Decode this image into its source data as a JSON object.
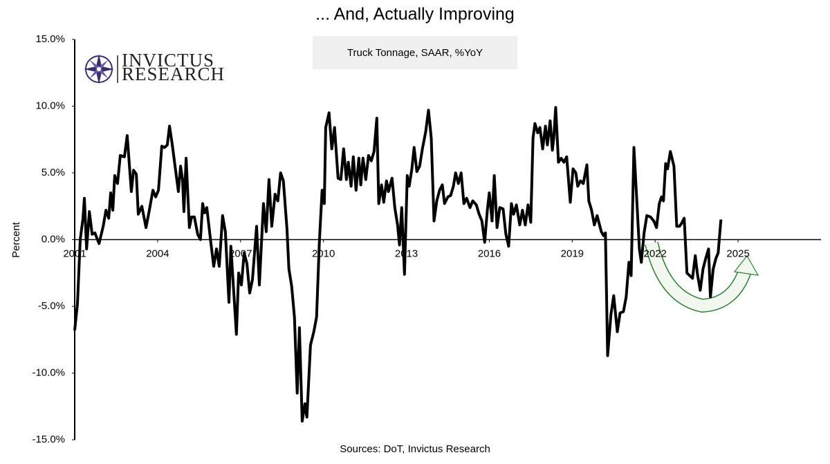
{
  "chart_data": {
    "type": "line",
    "title": "... And, Actually Improving",
    "subtitle": "Truck Tonnage, SAAR, %YoY",
    "ylabel": "Percent",
    "source": "Sources: DoT, Invictus Research",
    "logo": [
      "INVICTUS",
      "RESEARCH"
    ],
    "color": "#000000",
    "xlim": [
      2001,
      2028
    ],
    "xticks": [
      2001,
      2004,
      2007,
      2010,
      2013,
      2016,
      2019,
      2022,
      2025
    ],
    "ylim": [
      -15,
      15
    ],
    "yticks": [
      {
        "value": -15,
        "label": "-15.0%"
      },
      {
        "value": -10,
        "label": "-10.0%"
      },
      {
        "value": -5,
        "label": "-5.0%"
      },
      {
        "value": 0,
        "label": "0.0%"
      },
      {
        "value": 5,
        "label": "5.0%"
      },
      {
        "value": 10,
        "label": "10.0%"
      },
      {
        "value": 15,
        "label": "15.0%"
      }
    ],
    "x": [
      2001.0,
      2001.1,
      2001.2,
      2001.3,
      2001.35,
      2001.43,
      2001.53,
      2001.63,
      2001.73,
      2001.88,
      2002.03,
      2002.13,
      2002.23,
      2002.3,
      2002.38,
      2002.45,
      2002.55,
      2002.65,
      2002.8,
      2002.9,
      2003.05,
      2003.13,
      2003.23,
      2003.3,
      2003.43,
      2003.58,
      2003.7,
      2003.83,
      2003.93,
      2004.03,
      2004.15,
      2004.25,
      2004.35,
      2004.43,
      2004.53,
      2004.63,
      2004.75,
      2004.83,
      2004.9,
      2004.95,
      2005.03,
      2005.15,
      2005.23,
      2005.33,
      2005.45,
      2005.55,
      2005.63,
      2005.7,
      2005.78,
      2005.93,
      2006.03,
      2006.13,
      2006.23,
      2006.35,
      2006.45,
      2006.58,
      2006.65,
      2006.85,
      2006.93,
      2007.03,
      2007.13,
      2007.23,
      2007.33,
      2007.43,
      2007.58,
      2007.68,
      2007.83,
      2007.93,
      2008.03,
      2008.13,
      2008.25,
      2008.35,
      2008.45,
      2008.55,
      2008.68,
      2008.75,
      2008.85,
      2008.95,
      2009.05,
      2009.13,
      2009.23,
      2009.33,
      2009.4,
      2009.53,
      2009.65,
      2009.75,
      2009.85,
      2009.95,
      2010.03,
      2010.08,
      2010.2,
      2010.3,
      2010.4,
      2010.53,
      2010.63,
      2010.73,
      2010.83,
      2010.9,
      2011.0,
      2011.08,
      2011.18,
      2011.28,
      2011.35,
      2011.43,
      2011.53,
      2011.63,
      2011.73,
      2011.83,
      2011.93,
      2012.0,
      2012.1,
      2012.18,
      2012.28,
      2012.35,
      2012.48,
      2012.58,
      2012.68,
      2012.75,
      2012.83,
      2012.93,
      2013.03,
      2013.1,
      2013.2,
      2013.28,
      2013.38,
      2013.48,
      2013.58,
      2013.7,
      2013.8,
      2013.9,
      2014.0,
      2014.1,
      2014.2,
      2014.3,
      2014.38,
      2014.5,
      2014.6,
      2014.7,
      2014.78,
      2014.88,
      2014.98,
      2015.08,
      2015.18,
      2015.3,
      2015.4,
      2015.53,
      2015.63,
      2015.73,
      2015.83,
      2015.93,
      2016.0,
      2016.1,
      2016.18,
      2016.28,
      2016.38,
      2016.5,
      2016.6,
      2016.7,
      2016.8,
      2016.88,
      2016.98,
      2017.1,
      2017.2,
      2017.3,
      2017.4,
      2017.5,
      2017.58,
      2017.65,
      2017.75,
      2017.83,
      2017.93,
      2018.03,
      2018.1,
      2018.2,
      2018.28,
      2018.33,
      2018.4,
      2018.5,
      2018.6,
      2018.7,
      2018.8,
      2018.93,
      2019.03,
      2019.13,
      2019.2,
      2019.3,
      2019.4,
      2019.53,
      2019.6,
      2019.7,
      2019.8,
      2019.9,
      2020.05,
      2020.13,
      2020.2,
      2020.28,
      2020.4,
      2020.5,
      2020.63,
      2020.73,
      2020.85,
      2020.95,
      2021.05,
      2021.13,
      2021.23,
      2021.33,
      2021.43,
      2021.5,
      2021.6,
      2021.7,
      2021.83,
      2021.95,
      2022.05,
      2022.15,
      2022.23,
      2022.3,
      2022.38,
      2022.45,
      2022.55,
      2022.68,
      2022.78,
      2022.88,
      2022.95,
      2023.05,
      2023.15,
      2023.25,
      2023.35,
      2023.45,
      2023.53,
      2023.63,
      2023.73,
      2023.83,
      2023.93,
      2024.0,
      2024.1,
      2024.2,
      2024.28,
      2024.38
    ],
    "values": [
      -6.8,
      -4.8,
      0.0,
      1.6,
      3.1,
      -0.7,
      2.1,
      0.4,
      0.5,
      -0.3,
      1.0,
      2.2,
      1.6,
      3.5,
      2.2,
      4.8,
      4.2,
      6.3,
      6.2,
      7.8,
      3.6,
      5.2,
      4.9,
      1.9,
      2.5,
      0.9,
      2.2,
      3.7,
      3.2,
      3.7,
      7.0,
      6.9,
      7.1,
      8.5,
      7.1,
      5.5,
      3.6,
      5.5,
      4.5,
      2.1,
      6.1,
      0.9,
      1.7,
      1.7,
      0.4,
      0.0,
      2.7,
      2.0,
      2.4,
      -0.3,
      -2.0,
      -0.7,
      -2.0,
      1.8,
      0.6,
      -4.7,
      -0.5,
      -7.1,
      -2.5,
      -3.4,
      -1.0,
      -1.8,
      -4.0,
      -3.0,
      1.0,
      -3.4,
      2.7,
      0.6,
      4.5,
      1.0,
      3.4,
      2.9,
      5.0,
      4.4,
      0.8,
      -2.2,
      -3.5,
      -5.8,
      -11.5,
      -6.6,
      -13.6,
      -12.3,
      -13.3,
      -7.9,
      -6.9,
      -5.8,
      -0.2,
      3.7,
      2.7,
      8.4,
      9.5,
      6.8,
      8.4,
      4.6,
      4.5,
      6.8,
      4.5,
      5.8,
      4.0,
      6.2,
      3.7,
      6.1,
      4.1,
      6.1,
      4.5,
      6.3,
      5.9,
      6.6,
      9.1,
      2.7,
      4.1,
      2.8,
      4.4,
      3.6,
      4.6,
      2.4,
      1.1,
      -0.4,
      2.4,
      -2.6,
      4.8,
      4.0,
      5.3,
      6.9,
      5.1,
      5.5,
      6.8,
      8.1,
      9.7,
      7.6,
      1.4,
      2.9,
      3.7,
      4.1,
      2.7,
      3.2,
      3.3,
      4.0,
      5.0,
      4.2,
      5.0,
      2.7,
      3.1,
      2.4,
      2.9,
      2.6,
      1.9,
      1.4,
      -0.2,
      2.2,
      3.5,
      1.4,
      4.8,
      0.9,
      2.4,
      2.3,
      0.4,
      -0.5,
      2.7,
      1.9,
      2.6,
      1.1,
      2.2,
      1.1,
      2.6,
      1.3,
      7.6,
      8.7,
      8.0,
      8.4,
      6.8,
      8.5,
      7.1,
      8.9,
      6.7,
      7.6,
      9.9,
      5.8,
      6.1,
      5.8,
      6.2,
      2.8,
      5.3,
      5.0,
      4.0,
      4.4,
      4.2,
      5.6,
      2.9,
      2.2,
      1.1,
      1.8,
      0.6,
      0.3,
      0.5,
      -8.7,
      -5.6,
      -4.2,
      -6.9,
      -5.5,
      -5.4,
      -4.3,
      -1.7,
      -2.7,
      6.9,
      3.2,
      -0.7,
      -1.7,
      0.5,
      1.8,
      1.7,
      1.4,
      0.9,
      2.7,
      3.2,
      2.9,
      5.7,
      5.3,
      6.6,
      5.5,
      1.0,
      1.0,
      1.2,
      1.6,
      -2.5,
      -2.7,
      -2.9,
      -1.2,
      -2.6,
      -3.8,
      -2.2,
      -1.4,
      -0.7,
      -4.3,
      -2.2,
      -1.4,
      -1.0,
      1.5
    ]
  }
}
